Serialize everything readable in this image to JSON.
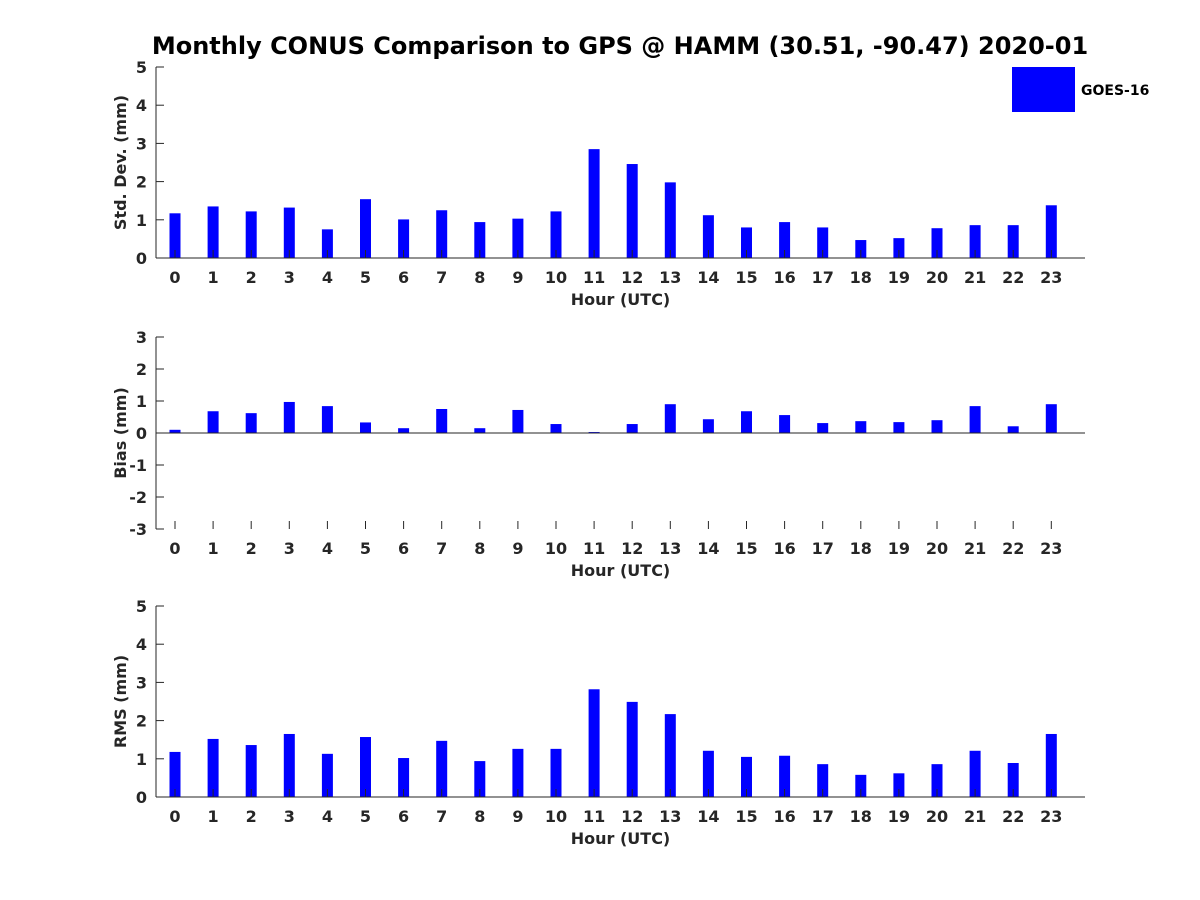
{
  "chart_data": {
    "title": "Monthly CONUS Comparison to GPS @ HAMM (30.51, -90.47) 2020-01",
    "legend": {
      "label": "GOES-16",
      "placement": "top-right"
    },
    "bar_color": "#0000ff",
    "categories": [
      "0",
      "1",
      "2",
      "3",
      "4",
      "5",
      "6",
      "7",
      "8",
      "9",
      "10",
      "11",
      "12",
      "13",
      "14",
      "15",
      "16",
      "17",
      "18",
      "19",
      "20",
      "21",
      "22",
      "23"
    ],
    "panels": [
      {
        "type": "bar",
        "name": "std",
        "xlabel": "Hour (UTC)",
        "ylabel": "Std. Dev. (mm)",
        "ylim": [
          0,
          5
        ],
        "yticks": [
          "0",
          "1",
          "2",
          "3",
          "4",
          "5"
        ],
        "values": [
          1.17,
          1.35,
          1.22,
          1.32,
          0.75,
          1.54,
          1.01,
          1.25,
          0.94,
          1.03,
          1.22,
          2.85,
          2.46,
          1.98,
          1.12,
          0.8,
          0.94,
          0.8,
          0.47,
          0.52,
          0.78,
          0.86,
          0.86,
          1.38
        ]
      },
      {
        "type": "bar",
        "name": "bias",
        "xlabel": "Hour (UTC)",
        "ylabel": "Bias (mm)",
        "ylim": [
          -3,
          3
        ],
        "yticks": [
          "-3",
          "-2",
          "-1",
          "0",
          "1",
          "2",
          "3"
        ],
        "values": [
          0.1,
          0.68,
          0.62,
          0.97,
          0.84,
          0.33,
          0.15,
          0.75,
          0.15,
          0.72,
          0.28,
          0.03,
          0.28,
          0.9,
          0.43,
          0.68,
          0.56,
          0.31,
          0.37,
          0.34,
          0.4,
          0.84,
          0.21,
          0.9
        ]
      },
      {
        "type": "bar",
        "name": "rms",
        "xlabel": "Hour (UTC)",
        "ylabel": "RMS (mm)",
        "ylim": [
          0,
          5
        ],
        "yticks": [
          "0",
          "1",
          "2",
          "3",
          "4",
          "5"
        ],
        "values": [
          1.18,
          1.52,
          1.36,
          1.65,
          1.13,
          1.57,
          1.02,
          1.47,
          0.94,
          1.26,
          1.26,
          2.82,
          2.49,
          2.17,
          1.21,
          1.05,
          1.08,
          0.86,
          0.58,
          0.62,
          0.86,
          1.21,
          0.89,
          1.65
        ]
      }
    ]
  }
}
